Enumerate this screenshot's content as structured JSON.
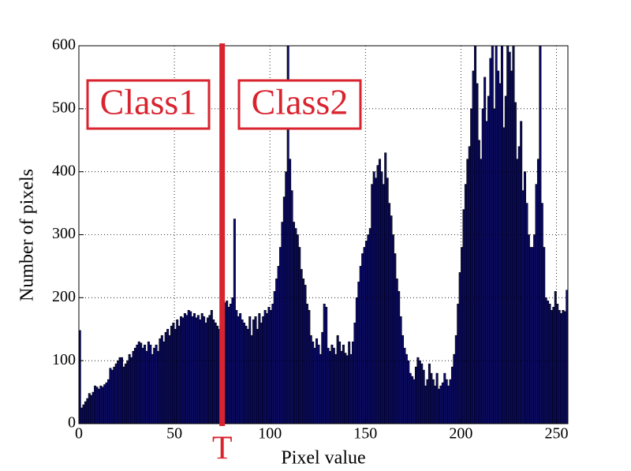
{
  "chart_data": {
    "type": "histogram",
    "xlabel": "Pixel value",
    "ylabel": "Number of pixels",
    "bins": [
      0,
      1,
      2,
      3,
      4,
      5,
      6,
      7,
      8,
      9,
      10,
      11,
      12,
      13,
      14,
      15,
      16,
      17,
      18,
      19,
      20,
      21,
      22,
      23,
      24,
      25,
      26,
      27,
      28,
      29,
      30,
      31,
      32,
      33,
      34,
      35,
      36,
      37,
      38,
      39,
      40,
      41,
      42,
      43,
      44,
      45,
      46,
      47,
      48,
      49,
      50,
      51,
      52,
      53,
      54,
      55,
      56,
      57,
      58,
      59,
      60,
      61,
      62,
      63,
      64,
      65,
      66,
      67,
      68,
      69,
      70,
      71,
      72,
      73,
      74,
      75,
      76,
      77,
      78,
      79,
      80,
      81,
      82,
      83,
      84,
      85,
      86,
      87,
      88,
      89,
      90,
      91,
      92,
      93,
      94,
      95,
      96,
      97,
      98,
      99,
      100,
      101,
      102,
      103,
      104,
      105,
      106,
      107,
      108,
      109,
      110,
      111,
      112,
      113,
      114,
      115,
      116,
      117,
      118,
      119,
      120,
      121,
      122,
      123,
      124,
      125,
      126,
      127,
      128,
      129,
      130,
      131,
      132,
      133,
      134,
      135,
      136,
      137,
      138,
      139,
      140,
      141,
      142,
      143,
      144,
      145,
      146,
      147,
      148,
      149,
      150,
      151,
      152,
      153,
      154,
      155,
      156,
      157,
      158,
      159,
      160,
      161,
      162,
      163,
      164,
      165,
      166,
      167,
      168,
      169,
      170,
      171,
      172,
      173,
      174,
      175,
      176,
      177,
      178,
      179,
      180,
      181,
      182,
      183,
      184,
      185,
      186,
      187,
      188,
      189,
      190,
      191,
      192,
      193,
      194,
      195,
      196,
      197,
      198,
      199,
      200,
      201,
      202,
      203,
      204,
      205,
      206,
      207,
      208,
      209,
      210,
      211,
      212,
      213,
      214,
      215,
      216,
      217,
      218,
      219,
      220,
      221,
      222,
      223,
      224,
      225,
      226,
      227,
      228,
      229,
      230,
      231,
      232,
      233,
      234,
      235,
      236,
      237,
      238,
      239,
      240,
      241,
      242,
      243,
      244,
      245,
      246,
      247,
      248,
      249,
      250,
      251,
      252,
      253,
      254,
      255,
      256
    ],
    "values": [
      148,
      25,
      30,
      35,
      40,
      48,
      45,
      50,
      60,
      58,
      55,
      60,
      58,
      62,
      65,
      70,
      88,
      85,
      90,
      95,
      100,
      105,
      105,
      90,
      95,
      100,
      110,
      105,
      115,
      120,
      125,
      130,
      128,
      120,
      125,
      115,
      130,
      125,
      110,
      120,
      125,
      115,
      135,
      140,
      130,
      145,
      150,
      140,
      155,
      160,
      150,
      165,
      155,
      170,
      168,
      175,
      172,
      180,
      178,
      170,
      175,
      168,
      172,
      165,
      175,
      170,
      160,
      168,
      172,
      180,
      165,
      160,
      155,
      150,
      165,
      160,
      192,
      195,
      185,
      190,
      200,
      325,
      180,
      170,
      175,
      165,
      160,
      155,
      150,
      170,
      140,
      165,
      170,
      150,
      175,
      160,
      170,
      180,
      175,
      185,
      180,
      190,
      210,
      230,
      250,
      280,
      320,
      360,
      400,
      600,
      420,
      370,
      320,
      310,
      300,
      280,
      245,
      230,
      220,
      190,
      180,
      140,
      130,
      120,
      135,
      125,
      110,
      145,
      190,
      185,
      120,
      115,
      125,
      120,
      110,
      140,
      130,
      115,
      125,
      112,
      108,
      130,
      110,
      130,
      160,
      200,
      225,
      250,
      270,
      280,
      290,
      300,
      310,
      380,
      400,
      390,
      410,
      420,
      400,
      380,
      430,
      390,
      350,
      330,
      300,
      270,
      230,
      210,
      170,
      140,
      120,
      110,
      100,
      80,
      75,
      70,
      90,
      105,
      100,
      95,
      85,
      60,
      70,
      95,
      80,
      70,
      60,
      80,
      55,
      60,
      65,
      80,
      70,
      60,
      70,
      90,
      110,
      140,
      190,
      240,
      280,
      340,
      380,
      420,
      440,
      500,
      560,
      600,
      540,
      450,
      420,
      500,
      550,
      480,
      520,
      580,
      600,
      500,
      600,
      560,
      540,
      600,
      470,
      520,
      600,
      590,
      560,
      600,
      510,
      420,
      440,
      480,
      370,
      400,
      350,
      300,
      280,
      280,
      300,
      380,
      420,
      600,
      350,
      280,
      200,
      195,
      190,
      180,
      185,
      210,
      190,
      180,
      175,
      180,
      178,
      212
    ],
    "color": "#0b0b6b",
    "xlim": [
      0,
      256
    ],
    "ylim": [
      0,
      600
    ],
    "xticks": [
      0,
      50,
      100,
      150,
      200,
      250
    ],
    "yticks": [
      0,
      100,
      200,
      300,
      400,
      500,
      600
    ],
    "grid": true,
    "threshold": 75,
    "threshold_label": "T",
    "threshold_color": "#d9232e",
    "annotations": [
      "Class1",
      "Class2"
    ]
  }
}
